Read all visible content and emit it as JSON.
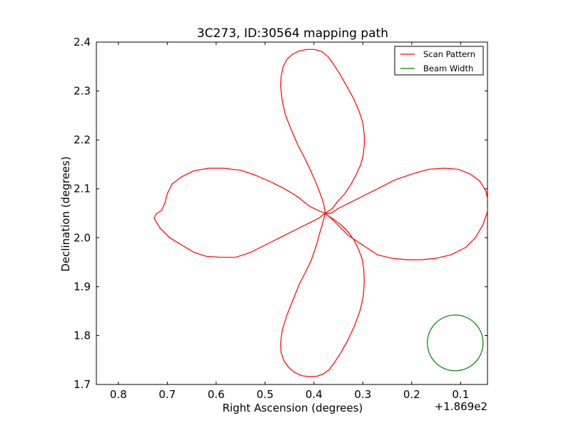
{
  "chart_data": {
    "type": "line",
    "title": "3C273, ID:30564 mapping path",
    "xlabel": "Right Ascension (degrees)",
    "ylabel": "Declination (degrees)",
    "x_offset_label": "+1.869e2",
    "xlim": [
      0.845,
      0.045
    ],
    "ylim": [
      1.7,
      2.4
    ],
    "x_ticks": [
      0.8,
      0.7,
      0.6,
      0.5,
      0.4,
      0.3,
      0.2,
      0.1
    ],
    "x_tick_labels": [
      "0.8",
      "0.7",
      "0.6",
      "0.5",
      "0.4",
      "0.3",
      "0.2",
      "0.1"
    ],
    "y_ticks": [
      1.7,
      1.8,
      1.9,
      2.0,
      2.1,
      2.2,
      2.3,
      2.4
    ],
    "y_tick_labels": [
      "1.7",
      "1.8",
      "1.9",
      "2.0",
      "2.1",
      "2.2",
      "2.3",
      "2.4"
    ],
    "grid": false,
    "legend_position": "upper right",
    "series": [
      {
        "name": "Scan Pattern",
        "color": "#ff0000",
        "x": [
          0.377,
          0.38,
          0.387,
          0.397,
          0.408,
          0.42,
          0.433,
          0.446,
          0.458,
          0.465,
          0.468,
          0.467,
          0.463,
          0.455,
          0.444,
          0.43,
          0.414,
          0.398,
          0.383,
          0.371,
          0.36,
          0.347,
          0.333,
          0.319,
          0.308,
          0.3,
          0.297,
          0.297,
          0.299,
          0.304,
          0.313,
          0.324,
          0.337,
          0.351,
          0.362,
          0.377,
          0.39,
          0.41,
          0.44,
          0.47,
          0.5,
          0.53,
          0.56,
          0.59,
          0.62,
          0.645,
          0.67,
          0.695,
          0.715,
          0.727,
          0.722,
          0.712,
          0.705,
          0.7,
          0.69,
          0.67,
          0.645,
          0.615,
          0.585,
          0.55,
          0.52,
          0.49,
          0.46,
          0.435,
          0.41,
          0.39,
          0.377,
          0.365,
          0.35,
          0.33,
          0.3,
          0.27,
          0.24,
          0.21,
          0.18,
          0.15,
          0.12,
          0.09,
          0.07,
          0.055,
          0.046,
          0.043,
          0.048,
          0.06,
          0.08,
          0.105,
          0.135,
          0.165,
          0.2,
          0.235,
          0.27,
          0.3,
          0.33,
          0.35,
          0.365,
          0.377,
          0.382,
          0.388,
          0.395,
          0.405,
          0.417,
          0.43,
          0.444,
          0.456,
          0.465,
          0.468,
          0.467,
          0.461,
          0.452,
          0.44,
          0.425,
          0.409,
          0.393,
          0.38,
          0.369,
          0.358,
          0.345,
          0.331,
          0.317,
          0.306,
          0.299,
          0.297,
          0.298,
          0.301,
          0.308,
          0.318,
          0.33,
          0.343,
          0.356,
          0.368,
          0.377
        ],
        "y": [
          2.05,
          2.07,
          2.09,
          2.115,
          2.14,
          2.165,
          2.19,
          2.22,
          2.25,
          2.28,
          2.31,
          2.33,
          2.35,
          2.365,
          2.375,
          2.382,
          2.385,
          2.385,
          2.38,
          2.37,
          2.355,
          2.335,
          2.31,
          2.285,
          2.26,
          2.235,
          2.21,
          2.19,
          2.17,
          2.15,
          2.13,
          2.11,
          2.09,
          2.075,
          2.06,
          2.05,
          2.04,
          2.03,
          2.015,
          2.0,
          1.985,
          1.97,
          1.96,
          1.96,
          1.962,
          1.97,
          1.985,
          2.0,
          2.02,
          2.04,
          2.05,
          2.055,
          2.07,
          2.09,
          2.11,
          2.125,
          2.137,
          2.142,
          2.142,
          2.138,
          2.128,
          2.115,
          2.1,
          2.085,
          2.065,
          2.055,
          2.05,
          2.04,
          2.025,
          2.005,
          1.985,
          1.965,
          1.958,
          1.955,
          1.955,
          1.958,
          1.965,
          1.98,
          2.0,
          2.025,
          2.05,
          2.07,
          2.095,
          2.115,
          2.13,
          2.14,
          2.142,
          2.14,
          2.13,
          2.118,
          2.1,
          2.085,
          2.07,
          2.06,
          2.05,
          2.05,
          2.03,
          2.01,
          1.985,
          1.955,
          1.93,
          1.905,
          1.87,
          1.84,
          1.81,
          1.785,
          1.765,
          1.748,
          1.735,
          1.725,
          1.718,
          1.716,
          1.717,
          1.722,
          1.73,
          1.745,
          1.765,
          1.79,
          1.82,
          1.85,
          1.88,
          1.91,
          1.935,
          1.955,
          1.975,
          1.995,
          2.012,
          2.025,
          2.035,
          2.043,
          2.05
        ]
      },
      {
        "name": "Beam Width",
        "color": "#008000",
        "shape": "circle",
        "center": [
          0.111,
          1.785
        ],
        "radius_ra": 0.057,
        "radius_dec": 0.057
      }
    ]
  }
}
